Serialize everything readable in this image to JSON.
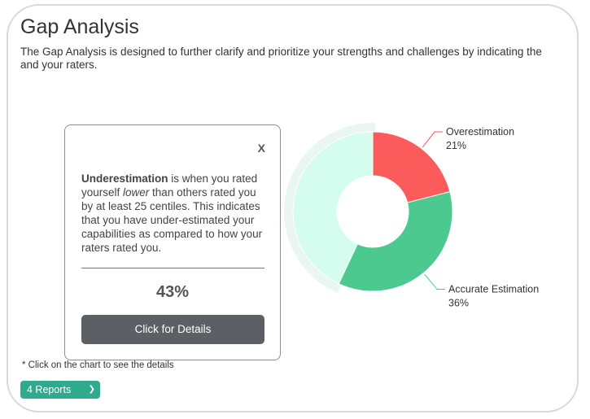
{
  "header": {
    "title": "Gap Analysis",
    "description": "The Gap Analysis is designed to further clarify and prioritize your strengths and challenges by indicating the and your raters."
  },
  "chart_data": {
    "type": "pie",
    "donut": true,
    "slices": [
      {
        "name": "Overestimation",
        "value": 21,
        "label": "21%",
        "color": "#fb5b5b"
      },
      {
        "name": "Accurate Estimation",
        "value": 36,
        "label": "36%",
        "color": "#4cc98e"
      },
      {
        "name": "Underestimation",
        "value": 43,
        "label": "43%",
        "color": "#d4fcef",
        "selected": true
      }
    ]
  },
  "popup": {
    "close_label": "X",
    "term": "Underestimation",
    "text_before": " is when you rated yourself ",
    "emphasis": "lower",
    "text_after": " than others rated you by at least 25 centiles. This indicates that you have under-estimated your capabilities as compared to how your raters rated you.",
    "percent": "43%",
    "button_label": "Click for Details"
  },
  "footer": {
    "note": "* Click on the chart to see the details",
    "reports_select": {
      "value": "4 Reports",
      "icon": "chevron-down-icon"
    }
  }
}
